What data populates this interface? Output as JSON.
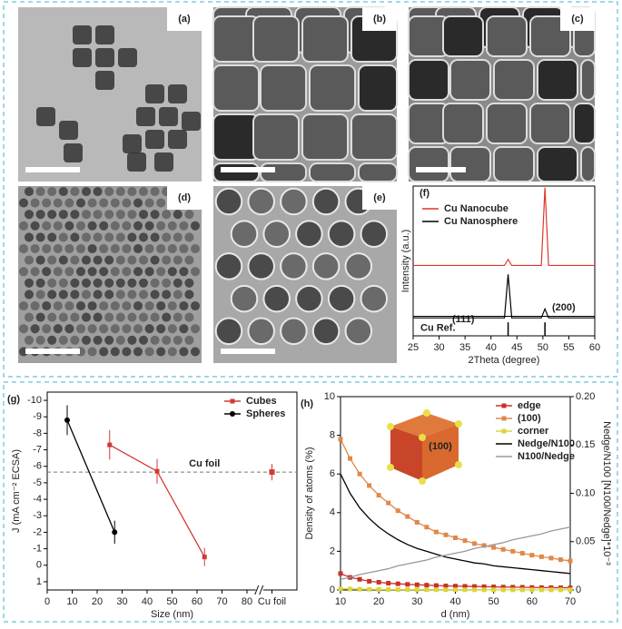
{
  "images": [
    {
      "label": "(a)"
    },
    {
      "label": "(b)"
    },
    {
      "label": "(c)"
    },
    {
      "label": "(d)"
    },
    {
      "label": "(e)"
    }
  ],
  "chart_data": [
    {
      "type": "line",
      "panel_label": "(f)",
      "x_label": "2Theta (degree)",
      "y_label": "Intensity (a.u.)",
      "x": [
        25,
        42.6,
        43.3,
        44,
        49.7,
        50.4,
        51.1,
        60
      ],
      "xlim": [
        25,
        60
      ],
      "xticks": [
        25,
        30,
        35,
        40,
        45,
        50,
        55,
        60
      ],
      "ylim": [
        0,
        1
      ],
      "yticks": [],
      "legend": "top-left",
      "series": [
        {
          "name": "Cu Nanocube",
          "color": "#e0362b",
          "values": [
            0.47,
            0.47,
            0.51,
            0.47,
            0.47,
            0.99,
            0.47,
            0.47
          ]
        },
        {
          "name": "Cu Nanosphere",
          "color": "#000000",
          "values": [
            0.12,
            0.12,
            0.41,
            0.12,
            0.12,
            0.18,
            0.12,
            0.12
          ]
        }
      ],
      "annotations": [
        "(111)",
        "(200)"
      ],
      "reference": {
        "label": "Cu Ref.",
        "x": [
          43.3,
          50.4
        ],
        "height": [
          0.09,
          0.09
        ],
        "color": "#000000"
      }
    },
    {
      "type": "errorbar",
      "panel_label": "(g)",
      "x_label": "Size (nm)",
      "y_label": "J (mA cm⁻² ECSA)",
      "xlim": [
        0,
        100
      ],
      "xticks": [
        0,
        10,
        20,
        30,
        40,
        50,
        60,
        70,
        80,
        {
          "value": 90,
          "label": "Cu foil"
        }
      ],
      "ylim": [
        1.5,
        -10.5
      ],
      "yticks": [
        1,
        0,
        -1,
        -2,
        -3,
        -4,
        -5,
        -6,
        -7,
        -8,
        -9,
        -10
      ],
      "legend": "top-right",
      "series": [
        {
          "name": "Cubes",
          "color": "#d13a35",
          "marker": "square",
          "x": [
            25,
            44,
            63
          ],
          "values": [
            -7.3,
            -5.7,
            -0.5
          ],
          "errors": [
            0.9,
            0.75,
            0.55
          ]
        },
        {
          "name": "Spheres",
          "color": "#000000",
          "marker": "circle",
          "x": [
            8,
            27
          ],
          "values": [
            -8.8,
            -2.0
          ],
          "errors": [
            0.9,
            0.7
          ]
        }
      ],
      "reference": {
        "label": "Cu foil",
        "x": 90,
        "value": -5.65,
        "error": 0.5,
        "color": "#d13a35"
      }
    },
    {
      "type": "line",
      "panel_label": "(h)",
      "x_label": "d (nm)",
      "y_label": "Density of atoms (%)",
      "y2_label": "Nedge/N100 [N100/Nedge]*10⁻³",
      "inset_label": "(100)",
      "x": [
        10,
        12.5,
        15,
        17.5,
        20,
        22.5,
        25,
        27.5,
        30,
        32.5,
        35,
        37.5,
        40,
        42.5,
        45,
        47.5,
        50,
        52.5,
        55,
        57.5,
        60,
        62.5,
        65,
        67.5,
        70
      ],
      "xlim": [
        10,
        70
      ],
      "xticks": [
        10,
        20,
        30,
        40,
        50,
        60,
        70
      ],
      "ylim": [
        0,
        10
      ],
      "yticks": [
        0,
        2,
        4,
        6,
        8,
        10
      ],
      "y2lim": [
        0,
        0.2
      ],
      "y2ticks": [
        0,
        0.05,
        {
          "value": 0.1,
          "label": "0.10"
        },
        0.15,
        {
          "value": 0.2,
          "label": "0.20"
        }
      ],
      "legend": "top-right",
      "series": [
        {
          "name": "edge",
          "color": "#c9302c",
          "marker": "square",
          "values": [
            0.85,
            0.65,
            0.55,
            0.45,
            0.4,
            0.35,
            0.32,
            0.29,
            0.27,
            0.25,
            0.23,
            0.21,
            0.2,
            0.19,
            0.18,
            0.17,
            0.16,
            0.15,
            0.145,
            0.14,
            0.13,
            0.125,
            0.12,
            0.115,
            0.11
          ]
        },
        {
          "name": "(100)",
          "color": "#e0884a",
          "marker": "square",
          "values": [
            7.8,
            6.8,
            6.0,
            5.4,
            4.9,
            4.5,
            4.1,
            3.8,
            3.5,
            3.25,
            3.0,
            2.85,
            2.7,
            2.55,
            2.4,
            2.3,
            2.2,
            2.1,
            2.0,
            1.9,
            1.8,
            1.72,
            1.65,
            1.57,
            1.5
          ]
        },
        {
          "name": "corner",
          "color": "#d8d63c",
          "marker": "square",
          "values": [
            0.06,
            0.05,
            0.04,
            0.035,
            0.03,
            0.025,
            0.022,
            0.02,
            0.018,
            0.016,
            0.015,
            0.014,
            0.013,
            0.012,
            0.011,
            0.01,
            0.01,
            0.009,
            0.009,
            0.008,
            0.008,
            0.007,
            0.007,
            0.007,
            0.006
          ]
        },
        {
          "name": "Nedge/N100",
          "color": "#000000",
          "axis": "y2",
          "values": [
            0.12,
            0.1,
            0.085,
            0.074,
            0.065,
            0.058,
            0.052,
            0.047,
            0.043,
            0.04,
            0.037,
            0.034,
            0.032,
            0.03,
            0.028,
            0.027,
            0.025,
            0.024,
            0.023,
            0.022,
            0.021,
            0.02,
            0.019,
            0.018,
            0.017
          ]
        },
        {
          "name": "N100/Nedge",
          "color": "#999999",
          "axis": "y2",
          "values": [
            0.011,
            0.013,
            0.016,
            0.018,
            0.02,
            0.022,
            0.025,
            0.027,
            0.029,
            0.031,
            0.034,
            0.036,
            0.038,
            0.04,
            0.043,
            0.045,
            0.047,
            0.049,
            0.052,
            0.054,
            0.056,
            0.058,
            0.061,
            0.063,
            0.065
          ]
        }
      ]
    }
  ]
}
